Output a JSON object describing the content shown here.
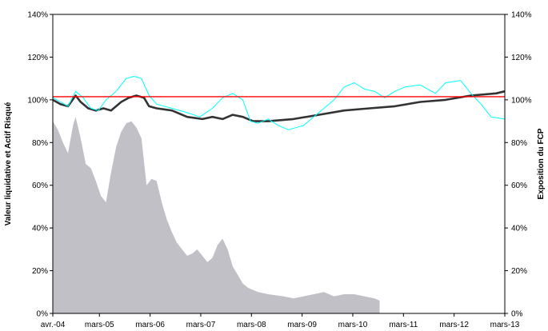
{
  "chart_data": {
    "type": "line",
    "ylabel_left": "Valeur liquidative et Actif Risqué",
    "ylabel_right": "Exposition du FCP",
    "x_tick_labels": [
      "avr.-04",
      "mars-05",
      "mars-06",
      "mars-07",
      "mars-08",
      "mars-09",
      "mars-10",
      "mars-11",
      "mars-12",
      "mars-13"
    ],
    "x_ticks_year": [
      2004.25,
      2005.17,
      2006.17,
      2007.17,
      2008.17,
      2009.17,
      2010.17,
      2011.17,
      2012.17,
      2013.17
    ],
    "xlim": [
      2004.25,
      2013.17
    ],
    "ylim_left": [
      0,
      140
    ],
    "ylim_right": [
      0,
      140
    ],
    "y_tick_labels_left": [
      "0%",
      "20%",
      "40%",
      "60%",
      "80%",
      "100%",
      "120%",
      "140%"
    ],
    "y_tick_labels_right": [
      "0%",
      "20%",
      "40%",
      "60%",
      "80%",
      "100%",
      "120%",
      "140%"
    ],
    "y_tick_values": [
      0,
      20,
      40,
      60,
      80,
      100,
      120,
      140
    ],
    "grid": false,
    "colors": {
      "nav": "#333333",
      "risky_asset": "#00ffff",
      "floor": "#ff0000",
      "exposure": "#c0c0c6",
      "plot_border": "#000000"
    },
    "series": [
      {
        "kind": "line",
        "color": "#333333",
        "x": [
          2004.25,
          2004.4,
          2004.55,
          2004.7,
          2004.8,
          2004.95,
          2005.1,
          2005.25,
          2005.4,
          2005.6,
          2005.75,
          2005.9,
          2006.05,
          2006.15,
          2006.3,
          2006.6,
          2006.9,
          2007.2,
          2007.4,
          2007.6,
          2007.8,
          2008.0,
          2008.2,
          2008.5,
          2009.0,
          2009.5,
          2010.0,
          2010.5,
          2011.0,
          2011.5,
          2012.0,
          2012.5,
          2013.0,
          2013.17
        ],
        "y": [
          100,
          98,
          97,
          102,
          99,
          96,
          95,
          96,
          95,
          99,
          101,
          102,
          101,
          97,
          96,
          95,
          92,
          91,
          92,
          91,
          93,
          92,
          90,
          90,
          91,
          93,
          95,
          96,
          97,
          99,
          100,
          102,
          103,
          104
        ]
      },
      {
        "kind": "line",
        "color": "#00ffff",
        "x": [
          2004.25,
          2004.4,
          2004.55,
          2004.7,
          2004.85,
          2005.0,
          2005.15,
          2005.3,
          2005.5,
          2005.7,
          2005.85,
          2006.0,
          2006.15,
          2006.3,
          2006.6,
          2006.9,
          2007.15,
          2007.4,
          2007.6,
          2007.8,
          2008.0,
          2008.15,
          2008.3,
          2008.5,
          2008.7,
          2008.9,
          2009.2,
          2009.5,
          2009.8,
          2010.0,
          2010.2,
          2010.4,
          2010.6,
          2010.8,
          2011.0,
          2011.2,
          2011.5,
          2011.8,
          2012.0,
          2012.3,
          2012.5,
          2012.7,
          2012.9,
          2013.17
        ],
        "y": [
          101,
          99,
          97,
          104,
          101,
          96,
          95,
          100,
          104,
          110,
          111,
          110,
          102,
          98,
          96,
          94,
          92,
          96,
          101,
          103,
          100,
          90,
          89,
          91,
          88,
          86,
          88,
          94,
          100,
          106,
          108,
          105,
          104,
          101,
          104,
          106,
          107,
          103,
          108,
          109,
          103,
          98,
          92,
          91
        ]
      },
      {
        "kind": "line",
        "color": "#ff0000",
        "x": [
          2004.25,
          2013.17
        ],
        "y": [
          101.5,
          101.5
        ]
      }
    ],
    "exposure": {
      "kind": "area",
      "color": "#c0c0c6",
      "x": [
        2004.25,
        2004.35,
        2004.45,
        2004.55,
        2004.65,
        2004.7,
        2004.8,
        2004.9,
        2005.0,
        2005.1,
        2005.2,
        2005.3,
        2005.4,
        2005.5,
        2005.6,
        2005.7,
        2005.8,
        2005.9,
        2006.0,
        2006.1,
        2006.2,
        2006.3,
        2006.4,
        2006.5,
        2006.6,
        2006.7,
        2006.8,
        2006.9,
        2007.0,
        2007.1,
        2007.2,
        2007.3,
        2007.4,
        2007.5,
        2007.6,
        2007.7,
        2007.8,
        2007.9,
        2008.0,
        2008.1,
        2008.2,
        2008.3,
        2008.5,
        2008.8,
        2009.0,
        2009.2,
        2009.4,
        2009.6,
        2009.8,
        2010.0,
        2010.2,
        2010.4,
        2010.6,
        2010.7
      ],
      "y": [
        90,
        86,
        80,
        75,
        88,
        92,
        82,
        70,
        68,
        62,
        55,
        52,
        66,
        78,
        85,
        89,
        90,
        87,
        82,
        60,
        63,
        62,
        52,
        44,
        38,
        33,
        30,
        27,
        28,
        30,
        27,
        24,
        26,
        32,
        35,
        30,
        22,
        18,
        14,
        12,
        11,
        10,
        9,
        8,
        7,
        8,
        9,
        10,
        8,
        9,
        9,
        8,
        7,
        6
      ]
    }
  }
}
